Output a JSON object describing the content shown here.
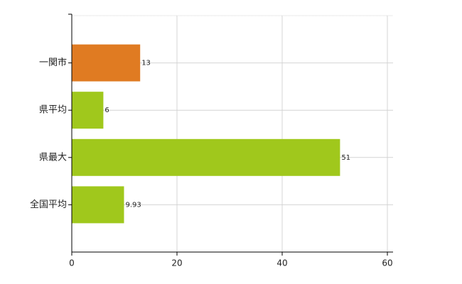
{
  "chart_data": {
    "type": "bar",
    "orientation": "horizontal",
    "categories": [
      "一関市",
      "県平均",
      "県最大",
      "全国平均"
    ],
    "values": [
      13,
      6,
      51,
      9.93
    ],
    "colors": [
      "#e07b22",
      "#a0c81c",
      "#a0c81c",
      "#a0c81c"
    ],
    "xlim": [
      0,
      60
    ],
    "xticks": [
      0,
      20,
      40,
      60
    ],
    "grid": true
  }
}
